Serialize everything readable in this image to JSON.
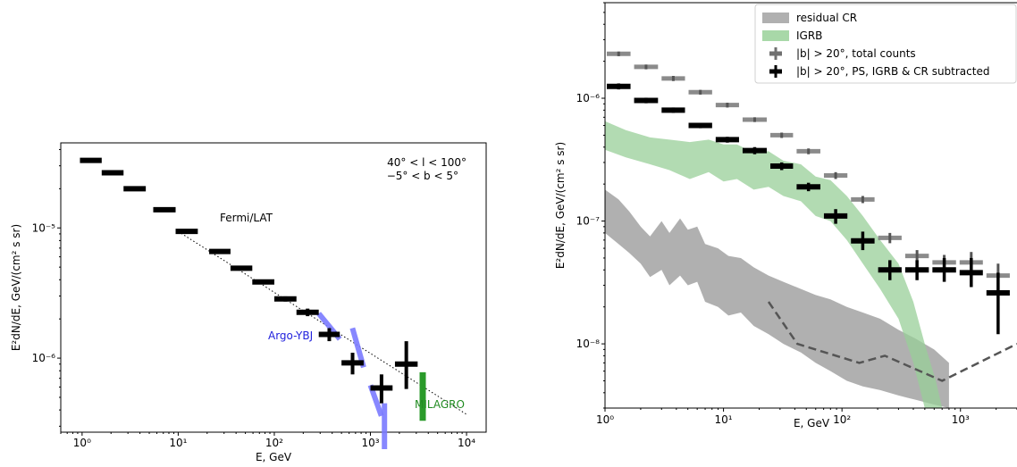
{
  "chart_data": [
    {
      "type": "scatter",
      "scale": "log-log",
      "xlabel": "E, GeV",
      "ylabel": "E²dN/dE, GeV/(cm² s sr)",
      "xlim": [
        0.6,
        16000
      ],
      "ylim": [
        2.7e-07,
        4.5e-05
      ],
      "x_ticks": [
        "10⁰",
        "10¹",
        "10²",
        "10³",
        "10⁴"
      ],
      "y_ticks": [
        "10⁻⁶",
        "10⁻⁵"
      ],
      "annotation_l": "40° < l < 100°",
      "annotation_b": "−5° < b < 5°",
      "fermi_label": "Fermi/LAT",
      "argo_label": "Argo-YBJ",
      "milagro_label": "MILAGRO",
      "colors": {
        "fermi": "#000000",
        "argo": "#7b7bff",
        "milagro": "#2a9a2a"
      },
      "fermi_points": [
        {
          "e_lo": 0.95,
          "e_hi": 1.6,
          "y": 3.3e-05,
          "err_lo": 3.2e-05,
          "err_hi": 3.4e-05
        },
        {
          "e_lo": 1.6,
          "e_hi": 2.7,
          "y": 2.65e-05,
          "err_lo": 2.58e-05,
          "err_hi": 2.72e-05
        },
        {
          "e_lo": 2.7,
          "e_hi": 4.6,
          "y": 2e-05,
          "err_lo": 1.95e-05,
          "err_hi": 2.05e-05
        },
        {
          "e_lo": 5.5,
          "e_hi": 9.4,
          "y": 1.38e-05,
          "err_lo": 1.34e-05,
          "err_hi": 1.42e-05
        },
        {
          "e_lo": 9.4,
          "e_hi": 16,
          "y": 9.4e-06,
          "err_lo": 9.1e-06,
          "err_hi": 9.7e-06
        },
        {
          "e_lo": 21,
          "e_hi": 35,
          "y": 6.6e-06,
          "err_lo": 6.4e-06,
          "err_hi": 6.8e-06
        },
        {
          "e_lo": 35,
          "e_hi": 59,
          "y": 4.9e-06,
          "err_lo": 4.75e-06,
          "err_hi": 5.05e-06
        },
        {
          "e_lo": 59,
          "e_hi": 100,
          "y": 3.85e-06,
          "err_lo": 3.7e-06,
          "err_hi": 4e-06
        },
        {
          "e_lo": 100,
          "e_hi": 170,
          "y": 2.85e-06,
          "err_lo": 2.72e-06,
          "err_hi": 2.98e-06
        },
        {
          "e_lo": 170,
          "e_hi": 290,
          "y": 2.25e-06,
          "err_lo": 2.1e-06,
          "err_hi": 2.4e-06
        },
        {
          "e_lo": 290,
          "e_hi": 480,
          "y": 1.52e-06,
          "err_lo": 1.35e-06,
          "err_hi": 1.7e-06
        },
        {
          "e_lo": 500,
          "e_hi": 850,
          "y": 9.2e-07,
          "err_lo": 7.5e-07,
          "err_hi": 1.1e-06
        },
        {
          "e_lo": 1000,
          "e_hi": 1700,
          "y": 5.9e-07,
          "err_lo": 4.5e-07,
          "err_hi": 7.5e-07
        },
        {
          "e_lo": 1800,
          "e_hi": 3100,
          "y": 9e-07,
          "err_lo": 5.8e-07,
          "err_hi": 1.35e-06
        }
      ],
      "dotted_line": [
        {
          "x": 10,
          "y": 9.4e-06
        },
        {
          "x": 10000,
          "y": 3.7e-07
        }
      ],
      "argo_segments": [
        {
          "x1": 290,
          "y1": 2.2e-06,
          "x2": 480,
          "y2": 1.4e-06
        },
        {
          "x1": 650,
          "y1": 1.7e-06,
          "x2": 850,
          "y2": 8.5e-07
        },
        {
          "x1": 1000,
          "y1": 6.2e-07,
          "x2": 1300,
          "y2": 3.6e-07
        },
        {
          "x1": 1400,
          "y1": 4.5e-07,
          "x2": 1400,
          "y2": 2e-07
        }
      ],
      "milagro": {
        "x": 3500,
        "y_lo": 3.3e-07,
        "y_hi": 7.8e-07
      }
    },
    {
      "type": "area",
      "scale": "log-log",
      "xlabel": "E, GeV",
      "ylabel": "E²dN/dE, GeV/(cm² s sr)",
      "xlim": [
        1,
        3000
      ],
      "ylim": [
        3e-09,
        6e-06
      ],
      "x_ticks": [
        "10⁰",
        "10¹",
        "10²",
        "10³"
      ],
      "y_ticks": [
        "10⁻⁸",
        "10⁻⁷",
        "10⁻⁶"
      ],
      "legend_position": "top-right",
      "legend": [
        {
          "label": "residual CR",
          "kind": "band",
          "color": "#b0b0b0"
        },
        {
          "label": "IGRB",
          "kind": "band",
          "color": "#a8d8a8"
        },
        {
          "label": "|b| > 20°, total counts",
          "kind": "points",
          "color": "#707070"
        },
        {
          "label": "|b| > 20°, PS, IGRB & CR subtracted",
          "kind": "points",
          "color": "#000000"
        }
      ],
      "total_counts": [
        {
          "e_lo": 1.0,
          "e_hi": 1.7,
          "y": 2.3e-06,
          "err_lo": 2.2e-06,
          "err_hi": 2.4e-06
        },
        {
          "e_lo": 1.7,
          "e_hi": 2.9,
          "y": 1.8e-06,
          "err_lo": 1.72e-06,
          "err_hi": 1.88e-06
        },
        {
          "e_lo": 2.9,
          "e_hi": 4.9,
          "y": 1.45e-06,
          "err_lo": 1.38e-06,
          "err_hi": 1.52e-06
        },
        {
          "e_lo": 4.9,
          "e_hi": 8.3,
          "y": 1.12e-06,
          "err_lo": 1.07e-06,
          "err_hi": 1.17e-06
        },
        {
          "e_lo": 8.3,
          "e_hi": 14,
          "y": 8.8e-07,
          "err_lo": 8.4e-07,
          "err_hi": 9.2e-07
        },
        {
          "e_lo": 14,
          "e_hi": 24,
          "y": 6.7e-07,
          "err_lo": 6.4e-07,
          "err_hi": 7e-07
        },
        {
          "e_lo": 24,
          "e_hi": 40,
          "y": 5e-07,
          "err_lo": 4.75e-07,
          "err_hi": 5.25e-07
        },
        {
          "e_lo": 40,
          "e_hi": 68,
          "y": 3.7e-07,
          "err_lo": 3.5e-07,
          "err_hi": 3.9e-07
        },
        {
          "e_lo": 68,
          "e_hi": 115,
          "y": 2.35e-07,
          "err_lo": 2.2e-07,
          "err_hi": 2.5e-07
        },
        {
          "e_lo": 115,
          "e_hi": 195,
          "y": 1.5e-07,
          "err_lo": 1.4e-07,
          "err_hi": 1.6e-07
        },
        {
          "e_lo": 195,
          "e_hi": 330,
          "y": 7.3e-08,
          "err_lo": 6.6e-08,
          "err_hi": 8e-08
        },
        {
          "e_lo": 330,
          "e_hi": 560,
          "y": 5.2e-08,
          "err_lo": 4.6e-08,
          "err_hi": 5.8e-08
        },
        {
          "e_lo": 560,
          "e_hi": 950,
          "y": 4.6e-08,
          "err_lo": 3.9e-08,
          "err_hi": 5.3e-08
        },
        {
          "e_lo": 950,
          "e_hi": 1600,
          "y": 4.6e-08,
          "err_lo": 3.6e-08,
          "err_hi": 5.6e-08
        },
        {
          "e_lo": 1600,
          "e_hi": 2700,
          "y": 3.6e-08,
          "err_lo": 2.7e-08,
          "err_hi": 4.5e-08
        }
      ],
      "subtracted": [
        {
          "e_lo": 1.0,
          "e_hi": 1.7,
          "y": 1.25e-06,
          "err_lo": 1.18e-06,
          "err_hi": 1.32e-06
        },
        {
          "e_lo": 1.7,
          "e_hi": 2.9,
          "y": 9.6e-07,
          "err_lo": 9.1e-07,
          "err_hi": 1.01e-06
        },
        {
          "e_lo": 2.9,
          "e_hi": 4.9,
          "y": 8e-07,
          "err_lo": 7.6e-07,
          "err_hi": 8.4e-07
        },
        {
          "e_lo": 4.9,
          "e_hi": 8.3,
          "y": 6e-07,
          "err_lo": 5.7e-07,
          "err_hi": 6.3e-07
        },
        {
          "e_lo": 8.3,
          "e_hi": 14,
          "y": 4.6e-07,
          "err_lo": 4.35e-07,
          "err_hi": 4.85e-07
        },
        {
          "e_lo": 14,
          "e_hi": 24,
          "y": 3.75e-07,
          "err_lo": 3.5e-07,
          "err_hi": 4e-07
        },
        {
          "e_lo": 24,
          "e_hi": 40,
          "y": 2.8e-07,
          "err_lo": 2.6e-07,
          "err_hi": 3e-07
        },
        {
          "e_lo": 40,
          "e_hi": 68,
          "y": 1.9e-07,
          "err_lo": 1.75e-07,
          "err_hi": 2.05e-07
        },
        {
          "e_lo": 68,
          "e_hi": 115,
          "y": 1.1e-07,
          "err_lo": 9.5e-08,
          "err_hi": 1.25e-07
        },
        {
          "e_lo": 115,
          "e_hi": 195,
          "y": 6.9e-08,
          "err_lo": 5.8e-08,
          "err_hi": 8.2e-08
        },
        {
          "e_lo": 195,
          "e_hi": 330,
          "y": 4e-08,
          "err_lo": 3.3e-08,
          "err_hi": 4.8e-08
        },
        {
          "e_lo": 330,
          "e_hi": 560,
          "y": 4e-08,
          "err_lo": 3.3e-08,
          "err_hi": 4.8e-08
        },
        {
          "e_lo": 560,
          "e_hi": 950,
          "y": 4e-08,
          "err_lo": 3.2e-08,
          "err_hi": 5e-08
        },
        {
          "e_lo": 950,
          "e_hi": 1600,
          "y": 3.8e-08,
          "err_lo": 2.9e-08,
          "err_hi": 5e-08
        },
        {
          "e_lo": 1600,
          "e_hi": 2700,
          "y": 2.6e-08,
          "err_lo": 1.2e-08,
          "err_hi": 3.8e-08
        }
      ],
      "igrb_band": {
        "x": [
          1.0,
          1.5,
          2.4,
          3.5,
          5.2,
          7.5,
          10,
          13,
          18,
          24,
          32,
          45,
          60,
          80,
          110,
          150,
          210,
          300,
          400,
          500,
          620,
          700
        ],
        "upper": [
          6.5e-07,
          5.5e-07,
          4.8e-07,
          4.6e-07,
          4.4e-07,
          4.6e-07,
          4.2e-07,
          4.2e-07,
          3.6e-07,
          3.7e-07,
          3.1e-07,
          2.9e-07,
          2.3e-07,
          2.15e-07,
          1.6e-07,
          1.1e-07,
          7e-08,
          4.5e-08,
          2.2e-08,
          1e-08,
          5e-09,
          3e-09
        ],
        "lower": [
          3.8e-07,
          3.3e-07,
          2.9e-07,
          2.6e-07,
          2.2e-07,
          2.5e-07,
          2.1e-07,
          2.2e-07,
          1.8e-07,
          1.9e-07,
          1.6e-07,
          1.45e-07,
          1.1e-07,
          1e-07,
          7e-08,
          4.5e-08,
          2.8e-08,
          1.6e-08,
          7e-09,
          3e-09,
          3e-09,
          3e-09
        ]
      },
      "cr_band": {
        "x": [
          1.0,
          1.3,
          1.6,
          2.0,
          2.4,
          3.0,
          3.5,
          4.3,
          5.0,
          6.0,
          7.0,
          9.0,
          11,
          14,
          18,
          24,
          32,
          45,
          60,
          80,
          110,
          150,
          210,
          300,
          420,
          600,
          800
        ],
        "upper": [
          1.8e-07,
          1.5e-07,
          1.2e-07,
          9e-08,
          7.5e-08,
          1e-07,
          8e-08,
          1.05e-07,
          8.5e-08,
          9e-08,
          6.5e-08,
          6e-08,
          5.2e-08,
          5e-08,
          4.2e-08,
          3.6e-08,
          3.2e-08,
          2.8e-08,
          2.5e-08,
          2.3e-08,
          2e-08,
          1.8e-08,
          1.6e-08,
          1.3e-08,
          1.1e-08,
          9e-09,
          7e-09
        ],
        "lower": [
          8e-08,
          6.5e-08,
          5.5e-08,
          4.5e-08,
          3.5e-08,
          4e-08,
          3e-08,
          3.6e-08,
          3e-08,
          3.2e-08,
          2.2e-08,
          2e-08,
          1.7e-08,
          1.8e-08,
          1.4e-08,
          1.2e-08,
          1e-08,
          8.5e-09,
          7e-09,
          6e-09,
          5e-09,
          4.5e-09,
          4.2e-09,
          3.8e-09,
          3.5e-09,
          3.2e-09,
          3e-09
        ]
      },
      "dashed_line": [
        {
          "x": 24,
          "y": 2.2e-08
        },
        {
          "x": 42,
          "y": 1e-08
        },
        {
          "x": 140,
          "y": 7e-09
        },
        {
          "x": 230,
          "y": 8e-09
        },
        {
          "x": 700,
          "y": 5e-09
        },
        {
          "x": 3000,
          "y": 1e-08
        }
      ]
    }
  ]
}
